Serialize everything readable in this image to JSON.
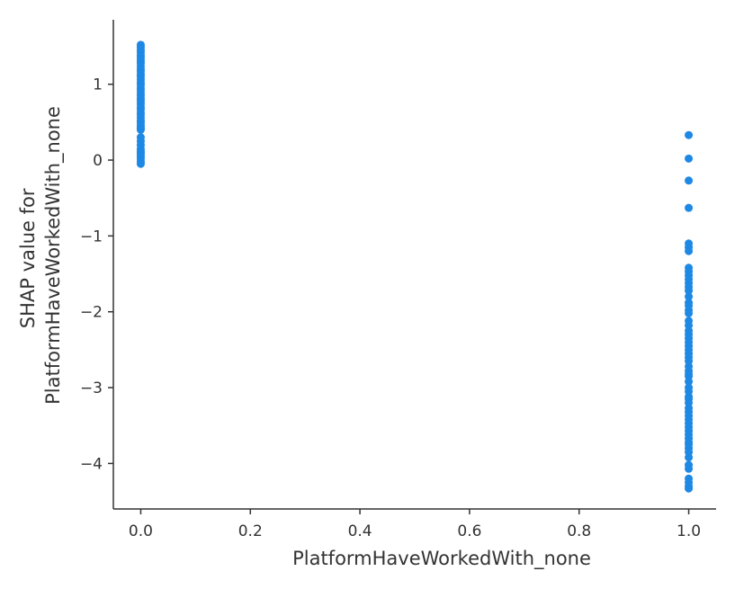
{
  "chart_data": {
    "type": "scatter",
    "title": "",
    "xlabel": "PlatformHaveWorkedWith_none",
    "ylabel_lines": [
      "SHAP value for",
      "PlatformHaveWorkedWith_none"
    ],
    "xlim": [
      -0.05,
      1.05
    ],
    "ylim": [
      -4.6,
      1.85
    ],
    "x_ticks": [
      0.0,
      0.2,
      0.4,
      0.6,
      0.8,
      1.0
    ],
    "x_tick_labels": [
      "0.0",
      "0.2",
      "0.4",
      "0.6",
      "0.8",
      "1.0"
    ],
    "y_ticks": [
      1,
      0,
      -1,
      -2,
      -3,
      -4
    ],
    "y_tick_labels": [
      "1",
      "0",
      "−1",
      "−2",
      "−3",
      "−4"
    ],
    "grid": false,
    "marker_color": "#1E88E5",
    "series": [
      {
        "x": [
          0,
          0,
          0,
          0,
          0,
          0,
          0,
          0,
          0,
          0,
          0,
          0,
          0,
          0,
          0,
          0,
          0,
          0,
          0,
          0,
          0,
          0,
          0,
          0,
          0,
          0,
          0,
          0,
          0,
          0,
          0,
          0,
          0,
          0,
          0,
          0,
          0,
          0,
          0,
          0,
          0,
          0,
          0,
          0
        ],
        "y": [
          1.52,
          1.49,
          1.45,
          1.42,
          1.38,
          1.35,
          1.31,
          1.28,
          1.24,
          1.2,
          1.17,
          1.13,
          1.1,
          1.06,
          1.02,
          0.99,
          0.95,
          0.92,
          0.88,
          0.85,
          0.81,
          0.78,
          0.74,
          0.7,
          0.67,
          0.63,
          0.6,
          0.56,
          0.52,
          0.49,
          0.45,
          0.42,
          0.4,
          0.25,
          0.2,
          0.15,
          0.12,
          0.08,
          0.05,
          0.02,
          -0.02,
          -0.05,
          0.1,
          0.3
        ]
      },
      {
        "x": [
          1,
          1,
          1,
          1,
          1,
          1,
          1,
          1,
          1,
          1,
          1,
          1,
          1,
          1,
          1,
          1,
          1,
          1,
          1,
          1,
          1,
          1,
          1,
          1,
          1,
          1,
          1,
          1,
          1,
          1,
          1,
          1,
          1,
          1,
          1,
          1,
          1,
          1,
          1,
          1,
          1,
          1,
          1,
          1,
          1,
          1,
          1,
          1,
          1,
          1,
          1,
          1,
          1,
          1,
          1,
          1,
          1,
          1,
          1,
          1
        ],
        "y": [
          0.33,
          0.02,
          -0.27,
          -0.63,
          -1.1,
          -1.15,
          -1.2,
          -1.42,
          -1.47,
          -1.52,
          -1.62,
          -1.67,
          -1.72,
          -1.8,
          -1.88,
          -1.92,
          -2.02,
          -2.12,
          -2.3,
          -2.35,
          -2.4,
          -2.45,
          -2.5,
          -2.55,
          -2.6,
          -2.65,
          -2.72,
          -2.78,
          -2.85,
          -2.92,
          -3.12,
          -3.2,
          -3.27,
          -3.32,
          -3.37,
          -3.42,
          -3.47,
          -3.52,
          -3.57,
          -3.62,
          -3.67,
          -3.72,
          -3.8,
          -3.85,
          -3.92,
          -4.02,
          -4.2,
          -4.25,
          -4.3,
          -4.33,
          -2.25,
          -2.82,
          -3.0,
          -3.05,
          -2.18,
          -1.98,
          -1.57,
          -3.15,
          -3.75,
          -4.07
        ]
      }
    ]
  }
}
